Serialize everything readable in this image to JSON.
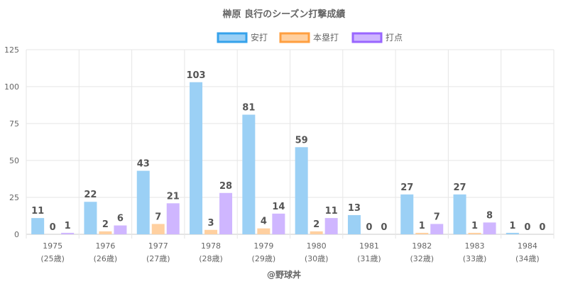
{
  "chart_data": {
    "type": "bar",
    "title": "榊原 良行のシーズン打撃成績",
    "xlabel": "@野球丼",
    "ylabel": "",
    "ylim": [
      0,
      125
    ],
    "yticks": [
      0,
      25,
      50,
      75,
      100,
      125
    ],
    "categories": [
      "1975",
      "1976",
      "1977",
      "1978",
      "1979",
      "1980",
      "1981",
      "1982",
      "1983",
      "1984"
    ],
    "category_sublabels": [
      "(25歳)",
      "(26歳)",
      "(27歳)",
      "(28歳)",
      "(29歳)",
      "(30歳)",
      "(31歳)",
      "(32歳)",
      "(33歳)",
      "(34歳)"
    ],
    "legend_position": "top-center",
    "series": [
      {
        "name": "安打",
        "values": [
          11,
          22,
          43,
          103,
          81,
          59,
          13,
          27,
          27,
          1
        ],
        "color": "#9bd0f5",
        "border": "#36a2eb"
      },
      {
        "name": "本塁打",
        "values": [
          0,
          2,
          7,
          3,
          4,
          2,
          0,
          1,
          1,
          0
        ],
        "color": "#ffd0a0",
        "border": "#ff9f40"
      },
      {
        "name": "打点",
        "values": [
          1,
          6,
          21,
          28,
          14,
          11,
          0,
          7,
          8,
          0
        ],
        "color": "#cfb6ff",
        "border": "#9966ff"
      }
    ]
  }
}
